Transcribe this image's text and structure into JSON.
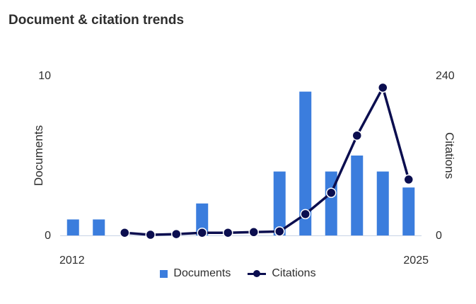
{
  "header": {
    "title": "Document & citation trends"
  },
  "colors": {
    "documents": "#3b7ddd",
    "citations": "#0b0e4f",
    "axis": "#c8d3e6"
  },
  "chart_data": {
    "type": "bar",
    "categories": [
      "2012",
      "2013",
      "2014",
      "2015",
      "2016",
      "2017",
      "2018",
      "2019",
      "2020",
      "2021",
      "2022",
      "2023",
      "2024",
      "2025"
    ],
    "category_tick_labels": [
      "2012",
      "2025"
    ],
    "series": [
      {
        "name": "Documents",
        "type": "bar",
        "axis": "left",
        "values": [
          1,
          1,
          0,
          0,
          0,
          2,
          0,
          0,
          4,
          9,
          4,
          5,
          4,
          3
        ]
      },
      {
        "name": "Citations",
        "type": "line",
        "axis": "right",
        "values": [
          null,
          null,
          4,
          1,
          2,
          4,
          4,
          5,
          6,
          32,
          64,
          150,
          222,
          84
        ]
      }
    ],
    "left_axis": {
      "label": "Documents",
      "range": [
        0,
        10
      ],
      "ticks": [
        "0",
        "10"
      ]
    },
    "right_axis": {
      "label": "Citations",
      "range": [
        0,
        240
      ],
      "ticks": [
        "0",
        "240"
      ]
    },
    "legend": {
      "placement": "bottom"
    },
    "grid": false
  }
}
